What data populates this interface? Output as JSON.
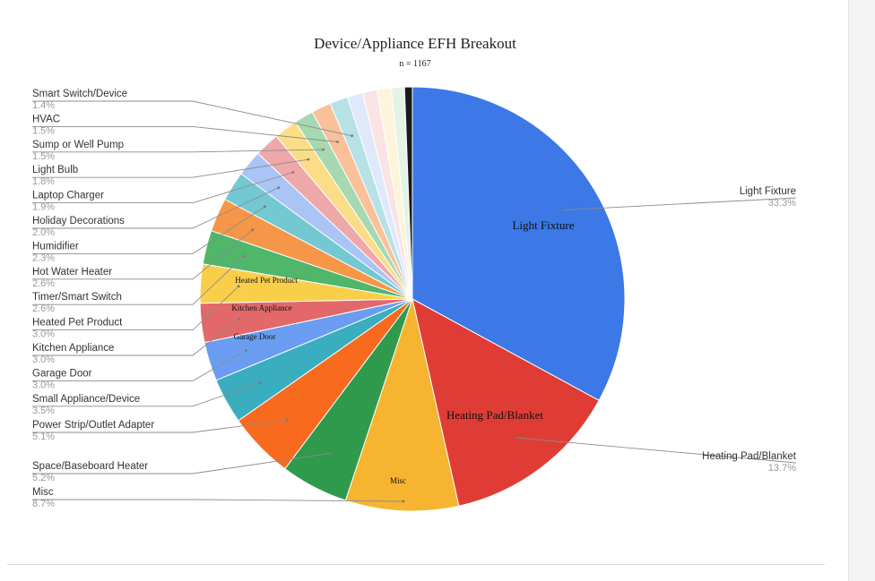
{
  "chart_data": {
    "type": "pie",
    "title": "Device/Appliance EFH Breakout",
    "subtitle": "n = 1167",
    "slices": [
      {
        "label": "Light Fixture",
        "pct_label": "33.3%",
        "value": 33.3,
        "color": "#3c78e6"
      },
      {
        "label": "Heating Pad/Blanket",
        "pct_label": "13.7%",
        "value": 13.7,
        "color": "#e03c36"
      },
      {
        "label": "Misc",
        "pct_label": "8.7%",
        "value": 8.7,
        "color": "#f6b430"
      },
      {
        "label": "Space/Baseboard Heater",
        "pct_label": "5.2%",
        "value": 5.2,
        "color": "#2f9a4c"
      },
      {
        "label": "Power Strip/Outlet Adapter",
        "pct_label": "5.1%",
        "value": 5.1,
        "color": "#f86a1e"
      },
      {
        "label": "Small Appliance/Device",
        "pct_label": "3.5%",
        "value": 3.5,
        "color": "#3aadbf"
      },
      {
        "label": "Garage Door",
        "pct_label": "3.0%",
        "value": 3.0,
        "color": "#6a9df2"
      },
      {
        "label": "Kitchen Appliance",
        "pct_label": "3.0%",
        "value": 3.0,
        "color": "#e2686a"
      },
      {
        "label": "Heated Pet Product",
        "pct_label": "3.0%",
        "value": 3.0,
        "color": "#f9cf4a"
      },
      {
        "label": "Timer/Smart Switch",
        "pct_label": "2.6%",
        "value": 2.6,
        "color": "#4fb66a"
      },
      {
        "label": "Hot Water Heater",
        "pct_label": "2.6%",
        "value": 2.6,
        "color": "#f69649"
      },
      {
        "label": "Humidifier",
        "pct_label": "2.3%",
        "value": 2.3,
        "color": "#74c8d2"
      },
      {
        "label": "Holiday Decorations",
        "pct_label": "2.0%",
        "value": 2.0,
        "color": "#a9c4f5"
      },
      {
        "label": "Laptop Charger",
        "pct_label": "1.9%",
        "value": 1.9,
        "color": "#eea8aa"
      },
      {
        "label": "Light Bulb",
        "pct_label": "1.8%",
        "value": 1.8,
        "color": "#fbdd88"
      },
      {
        "label": "Sump or Well Pump",
        "pct_label": "1.5%",
        "value": 1.5,
        "color": "#a6d8b1"
      },
      {
        "label": "HVAC",
        "pct_label": "1.5%",
        "value": 1.5,
        "color": "#f9c09a"
      },
      {
        "label": "Smart Switch/Device",
        "pct_label": "1.4%",
        "value": 1.4,
        "color": "#b6e1e7"
      },
      {
        "value": 1.2,
        "color": "#dfe9fb"
      },
      {
        "value": 1.1,
        "color": "#fbe3e3"
      },
      {
        "value": 1.1,
        "color": "#fdf4dc"
      },
      {
        "value": 1.0,
        "color": "#e3f3e6"
      },
      {
        "value": 0.6,
        "color": "#1a1a1a"
      }
    ],
    "inside_labels": [
      "Light Fixture",
      "Heating Pad/Blanket",
      "Misc",
      "Garage Door",
      "Kitchen Appliance",
      "Heated Pet Product"
    ],
    "start_angle": "12 o'clock",
    "direction": "clockwise",
    "legend": "callout labels with leader lines"
  }
}
